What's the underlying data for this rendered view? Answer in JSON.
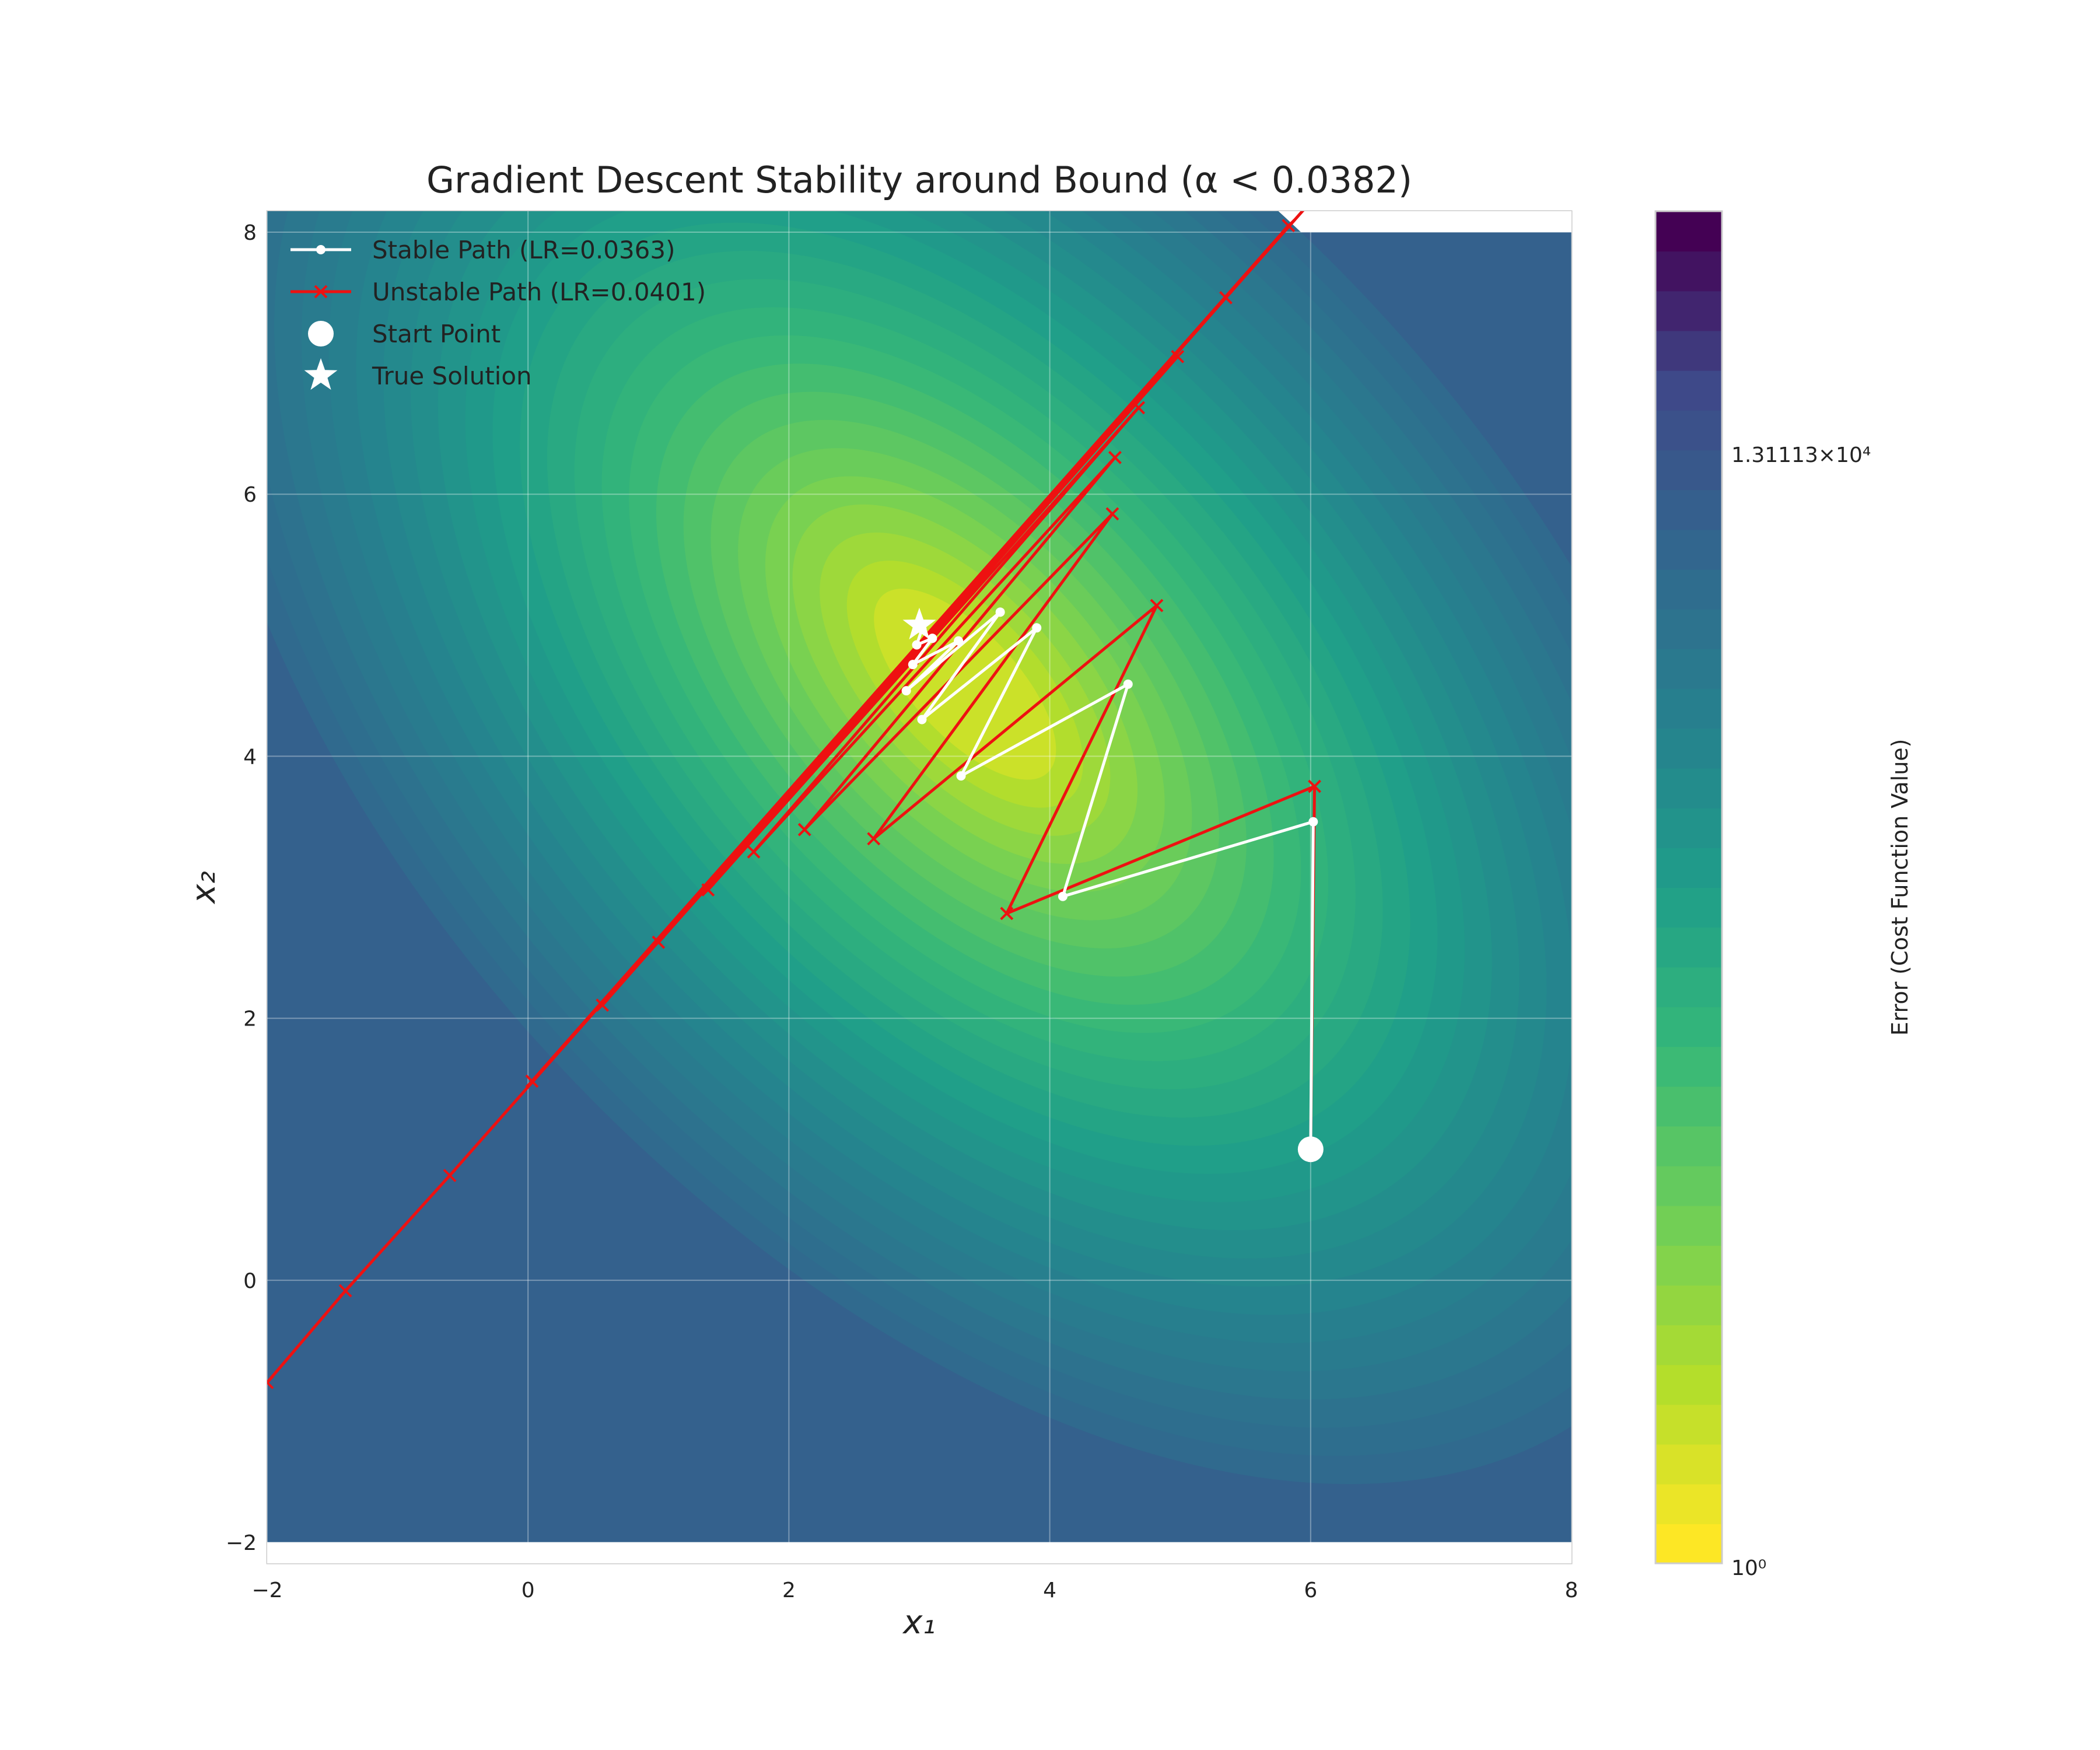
{
  "chart_data": {
    "type": "contour-line",
    "title": "Gradient Descent Stability around Bound (α < 0.0382)",
    "xlabel": "x₁",
    "ylabel": "x₂",
    "xlim": [
      -2,
      8
    ],
    "ylim": [
      -2,
      8
    ],
    "xticks": [
      -2,
      0,
      2,
      4,
      6,
      8
    ],
    "yticks": [
      -2,
      0,
      2,
      4,
      6,
      8
    ],
    "grid": true,
    "legend_position": "top-left",
    "colorbar": {
      "label": "Error (Cost Function Value)",
      "scale": "log",
      "colormap": "viridis_r",
      "tick_labels": [
        "1.31113×10⁴",
        "10⁰"
      ]
    },
    "series": [
      {
        "name": "Stable Path (LR=0.0363)",
        "color": "#ffffff",
        "marker": "circle",
        "x": [
          6.0,
          6.02,
          4.1,
          4.6,
          3.32,
          3.9,
          3.02,
          3.62,
          2.9,
          3.3,
          2.95,
          3.1,
          2.98,
          3.02
        ],
        "y": [
          1.0,
          3.5,
          2.93,
          4.55,
          3.85,
          4.98,
          4.28,
          5.1,
          4.5,
          4.88,
          4.7,
          4.9,
          4.85,
          4.97
        ]
      },
      {
        "name": "Unstable Path (LR=0.0401)",
        "color": "#ee1111",
        "marker": "x",
        "x": [
          6.0,
          6.03,
          3.67,
          4.82,
          2.65,
          4.48,
          2.12,
          4.5,
          1.73,
          4.68,
          1.38,
          4.98,
          1.0,
          5.35,
          0.57,
          5.83,
          0.03,
          6.15,
          -0.6,
          -1.4,
          -2.0
        ],
        "y": [
          1.0,
          3.77,
          2.8,
          5.15,
          3.37,
          5.85,
          3.44,
          6.28,
          3.27,
          6.66,
          2.98,
          7.05,
          2.58,
          7.5,
          2.1,
          8.05,
          1.52,
          8.4,
          0.8,
          -0.08,
          -0.78
        ]
      },
      {
        "name": "Start Point",
        "color": "#ffffff",
        "marker": "large-circle",
        "x": [
          6.0
        ],
        "y": [
          1.0
        ]
      },
      {
        "name": "True Solution",
        "color": "#ffffff",
        "marker": "star",
        "x": [
          3.0
        ],
        "y": [
          5.0
        ]
      }
    ]
  }
}
